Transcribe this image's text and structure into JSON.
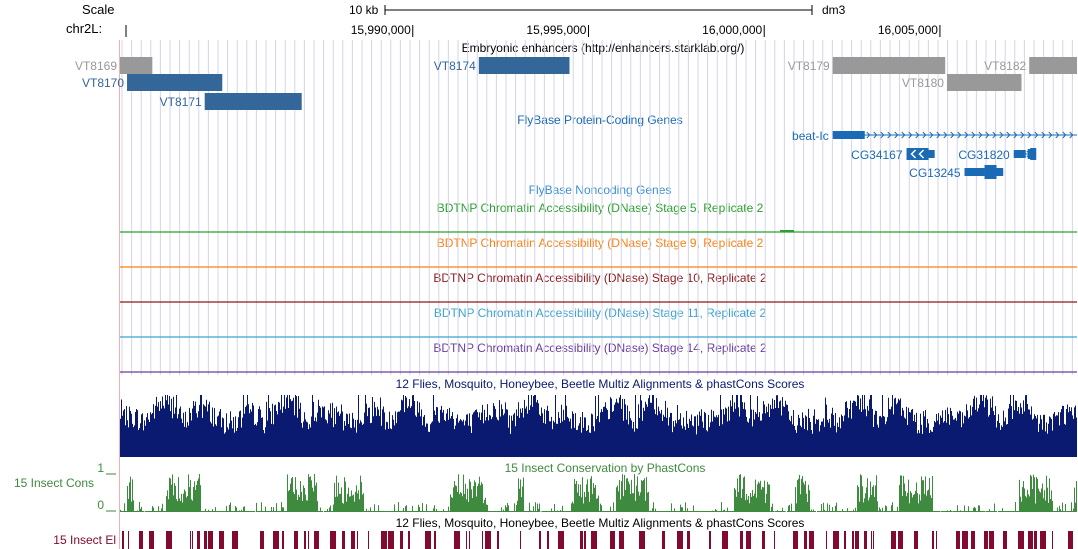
{
  "header": {
    "scale_label": "Scale",
    "chrom_label": "chr2L:",
    "scale_bar_label": "10 kb",
    "assembly": "dm3",
    "coordinates": [
      {
        "value": 15990000,
        "label": "15,990,000"
      },
      {
        "value": 15995000,
        "label": "15,995,000"
      },
      {
        "value": 16000000,
        "label": "16,000,000"
      },
      {
        "value": 16005000,
        "label": "16,005,000"
      }
    ]
  },
  "view": {
    "start": 15981670,
    "end": 16008900
  },
  "colors": {
    "gray_feature": "#999999",
    "blue_feature": "#336699",
    "gene_blue": "#1a6ab5",
    "grid": "#d4d4ec",
    "left_guide": "#f3b0b0",
    "multiz": "#0a1a70",
    "phastcons": "#3e8a3e",
    "elements": "#800a30"
  },
  "tracks": {
    "enhancers": {
      "title": "Embryonic enhancers (http://enhancers.starklab.org/)",
      "features": [
        {
          "name": "VT8169",
          "start": 15981670,
          "end": 15982590,
          "row": 0,
          "color": "gray",
          "label_side": "left"
        },
        {
          "name": "VT8170",
          "start": 15981870,
          "end": 15984580,
          "row": 1,
          "color": "blue",
          "label_side": "left"
        },
        {
          "name": "VT8171",
          "start": 15984080,
          "end": 15986840,
          "row": 2,
          "color": "blue",
          "label_side": "left"
        },
        {
          "name": "VT8174",
          "start": 15991880,
          "end": 15994460,
          "row": 0,
          "color": "blue",
          "label_side": "left"
        },
        {
          "name": "VT8179",
          "start": 16001950,
          "end": 16005150,
          "row": 0,
          "color": "gray",
          "label_side": "left"
        },
        {
          "name": "VT8180",
          "start": 16005200,
          "end": 16007320,
          "row": 1,
          "color": "gray",
          "label_side": "left"
        },
        {
          "name": "VT8182",
          "start": 16007540,
          "end": 16008900,
          "row": 0,
          "color": "gray",
          "label_side": "left"
        }
      ]
    },
    "protein_coding": {
      "title": "FlyBase Protein-Coding Genes",
      "genes": [
        {
          "name": "beat-Ic",
          "start": 16001950,
          "end": 16008900,
          "row": 0,
          "strand": "+",
          "label_side": "left"
        },
        {
          "name": "CG34167",
          "start": 16004050,
          "end": 16004850,
          "row": 1,
          "strand": "-",
          "label_side": "left"
        },
        {
          "name": "CG31820",
          "start": 16007100,
          "end": 16007740,
          "row": 1,
          "strand": "+",
          "label_side": "left"
        },
        {
          "name": "CG13245",
          "start": 16005700,
          "end": 16006800,
          "row": 2,
          "strand": "+",
          "label_side": "left"
        }
      ]
    },
    "noncoding": {
      "title": "FlyBase Noncoding Genes"
    },
    "dnase": [
      {
        "title": "BDTNP Chromatin Accessibility (DNase) Stage 5, Replicate 2",
        "color": "#2ca02c"
      },
      {
        "title": "BDTNP Chromatin Accessibility (DNase) Stage 9, Replicate 2",
        "color": "#ff7f0e"
      },
      {
        "title": "BDTNP Chromatin Accessibility (DNase) Stage 10, Replicate 2",
        "color": "#8b1a1a"
      },
      {
        "title": "BDTNP Chromatin Accessibility (DNase) Stage 11, Replicate 2",
        "color": "#3ba3d0"
      },
      {
        "title": "BDTNP Chromatin Accessibility (DNase) Stage 14, Replicate 2",
        "color": "#6a3d9a"
      }
    ],
    "multiz": {
      "title": "12 Flies, Mosquito, Honeybee, Beetle Multiz Alignments & phastCons Scores"
    },
    "phastcons": {
      "title": "15 Insect Conservation by PhastCons",
      "side_label": "15 Insect Cons",
      "axis_max": "1",
      "axis_min": "0"
    },
    "elements": {
      "title": "12 Flies, Mosquito, Honeybee, Beetle Multiz Alignments & phastCons Scores",
      "side_label": "15 Insect El"
    }
  }
}
